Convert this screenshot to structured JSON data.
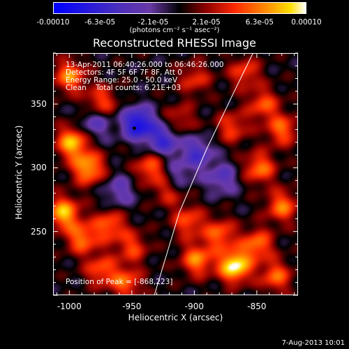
{
  "chart_data": {
    "type": "heatmap",
    "title": "Reconstructed RHESSI Image",
    "xlabel": "Heliocentric X (arcsec)",
    "ylabel": "Heliocentric Y (arcsec)",
    "xlim": [
      -1013,
      -817
    ],
    "ylim": [
      200,
      390
    ],
    "x_ticks": [
      "-1000",
      "-950",
      "-900",
      "-850"
    ],
    "x_tick_values": [
      -1000,
      -950,
      -900,
      -850
    ],
    "y_ticks": [
      "350",
      "300",
      "250"
    ],
    "y_tick_values": [
      350,
      300,
      250
    ],
    "colorbar": {
      "tick_labels": [
        "-0.00010",
        "-6.3e-05",
        "-2.1e-05",
        "2.1e-05",
        "6.3e-05",
        "0.00010"
      ],
      "tick_values": [
        -0.0001,
        -6.3e-05,
        -2.1e-05,
        2.1e-05,
        6.3e-05,
        0.0001
      ],
      "unit_label": "(photons cm⁻² s⁻¹ asec⁻²)",
      "colors": [
        "#0000ff",
        "#4a2fbf",
        "#6a3aa8",
        "#000000",
        "#8a0000",
        "#ff2a00",
        "#ff8a00",
        "#ffe000",
        "#ffffff"
      ]
    },
    "annotations": [
      "13-Apr-2011 06:40:26.000 to 06:46:26.000",
      "Detectors: 4F 5F 6F 7F 8F, Att 0",
      "Energy Range: 25.0 - 50.0 keV",
      "Clean    Total counts: 6.21E+03"
    ],
    "peak_label": "Position of Peak = [-868,223]",
    "peak_position": [
      -868,
      223
    ],
    "min_marker": [
      -948,
      331
    ],
    "limb_line": [
      [
        -932,
        200
      ],
      [
        -912,
        265
      ],
      [
        -890,
        315
      ],
      [
        -868,
        360
      ],
      [
        -853,
        390
      ]
    ],
    "hotspots": [
      {
        "x": -998,
        "y": 320,
        "v": 0.8
      },
      {
        "x": -985,
        "y": 300,
        "v": 0.75
      },
      {
        "x": -1005,
        "y": 265,
        "v": 0.8
      },
      {
        "x": -990,
        "y": 245,
        "v": 0.6
      },
      {
        "x": -968,
        "y": 255,
        "v": 0.55
      },
      {
        "x": -975,
        "y": 220,
        "v": 0.5
      },
      {
        "x": -950,
        "y": 238,
        "v": 0.45
      },
      {
        "x": -955,
        "y": 210,
        "v": 0.55
      },
      {
        "x": -1000,
        "y": 372,
        "v": 0.65
      },
      {
        "x": -975,
        "y": 352,
        "v": 0.5
      },
      {
        "x": -935,
        "y": 300,
        "v": 0.55
      },
      {
        "x": -920,
        "y": 283,
        "v": 0.45
      },
      {
        "x": -905,
        "y": 258,
        "v": 0.5
      },
      {
        "x": -898,
        "y": 228,
        "v": 0.65
      },
      {
        "x": -880,
        "y": 248,
        "v": 0.55
      },
      {
        "x": -868,
        "y": 223,
        "v": 1.0
      },
      {
        "x": -850,
        "y": 240,
        "v": 0.6
      },
      {
        "x": -835,
        "y": 215,
        "v": 0.55
      },
      {
        "x": -830,
        "y": 270,
        "v": 0.6
      },
      {
        "x": -848,
        "y": 300,
        "v": 0.6
      },
      {
        "x": -830,
        "y": 330,
        "v": 0.55
      },
      {
        "x": -845,
        "y": 350,
        "v": 0.5
      },
      {
        "x": -870,
        "y": 332,
        "v": 0.45
      },
      {
        "x": -860,
        "y": 375,
        "v": 0.45
      },
      {
        "x": -900,
        "y": 370,
        "v": 0.4
      },
      {
        "x": -912,
        "y": 338,
        "v": 0.35
      }
    ],
    "coldspots": [
      {
        "x": -945,
        "y": 335,
        "v": -0.85
      },
      {
        "x": -925,
        "y": 322,
        "v": -0.6
      },
      {
        "x": -898,
        "y": 312,
        "v": -0.5
      },
      {
        "x": -915,
        "y": 292,
        "v": -0.4
      },
      {
        "x": -960,
        "y": 282,
        "v": -0.35
      },
      {
        "x": -980,
        "y": 335,
        "v": -0.4
      },
      {
        "x": -878,
        "y": 292,
        "v": -0.4
      }
    ]
  },
  "footer": {
    "date": "7-Aug-2013 10:01"
  }
}
